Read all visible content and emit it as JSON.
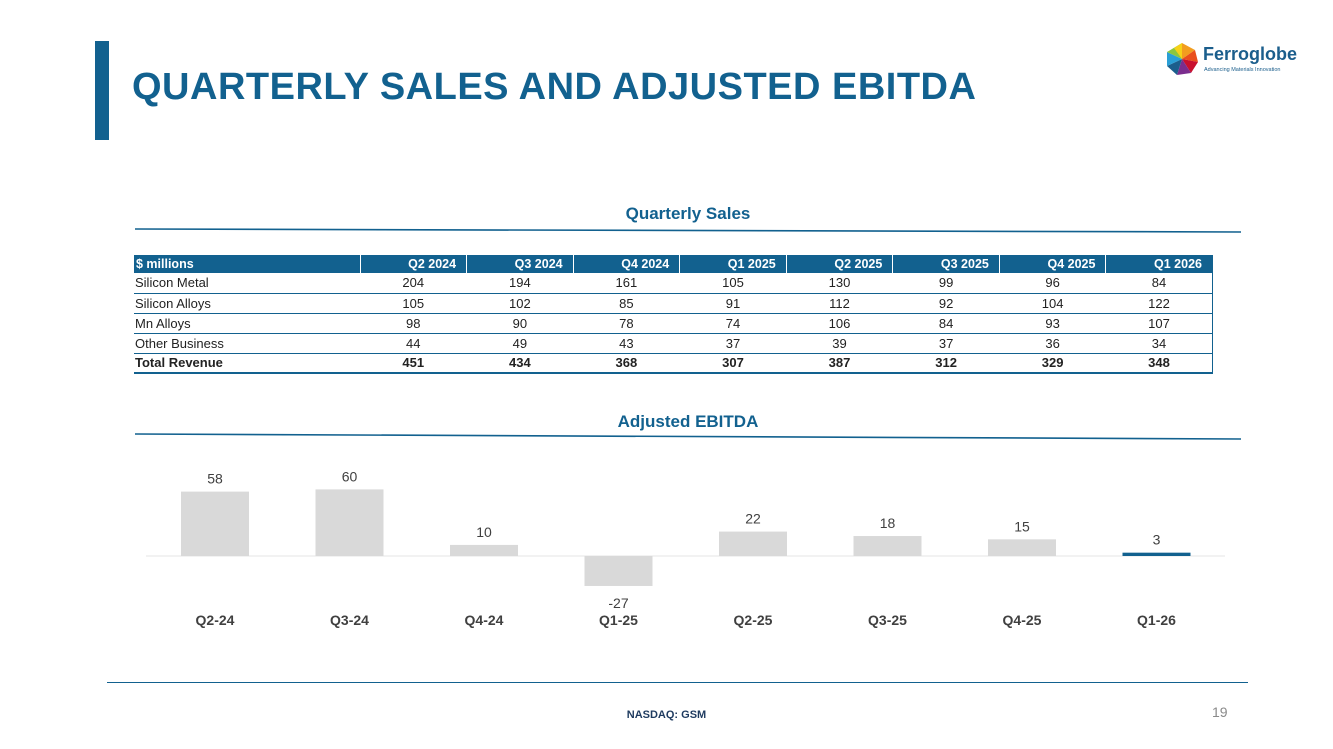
{
  "header": {
    "title": "QUARTERLY SALES AND ADJUSTED EBITDA"
  },
  "logo": {
    "name": "Ferroglobe",
    "tagline": "Advancing Materials Innovation"
  },
  "sales_section": {
    "title": "Quarterly Sales"
  },
  "sales_table": {
    "headers": [
      "$ millions",
      "Q2 2024",
      "Q3 2024",
      "Q4 2024",
      "Q1 2025",
      "Q2 2025",
      "Q3 2025",
      "Q4 2025",
      "Q1 2026"
    ],
    "rows": [
      [
        "Silicon Metal",
        "204",
        "194",
        "161",
        "105",
        "130",
        "99",
        "96",
        "84"
      ],
      [
        "Silicon Alloys",
        "105",
        "102",
        "85",
        "91",
        "112",
        "92",
        "104",
        "122"
      ],
      [
        "Mn Alloys",
        "98",
        "90",
        "78",
        "74",
        "106",
        "84",
        "93",
        "107"
      ],
      [
        "Other Business",
        "44",
        "49",
        "43",
        "37",
        "39",
        "37",
        "36",
        "34"
      ],
      [
        "Total Revenue",
        "451",
        "434",
        "368",
        "307",
        "387",
        "312",
        "329",
        "348"
      ]
    ]
  },
  "ebitda_section": {
    "title": "Adjusted EBITDA"
  },
  "chart_data": {
    "type": "bar",
    "title": "Adjusted EBITDA",
    "categories": [
      "Q2-24",
      "Q3-24",
      "Q4-24",
      "Q1-25",
      "Q2-25",
      "Q3-25",
      "Q4-25",
      "Q1-26"
    ],
    "values": [
      58,
      60,
      10,
      -27,
      22,
      18,
      15,
      3
    ],
    "data_labels": [
      "58",
      "60",
      "10",
      "-27",
      "22",
      "18",
      "15",
      "3"
    ],
    "xlabel": "",
    "ylabel": "",
    "ylim": [
      -27,
      60
    ],
    "grid": false,
    "bar_color": "#d9d9d9",
    "highlight_color": "#12618f",
    "highlight_index": 7
  },
  "footer": {
    "text": "NASDAQ: GSM",
    "page_number": "19"
  },
  "colors": {
    "brand": "#12618f"
  }
}
